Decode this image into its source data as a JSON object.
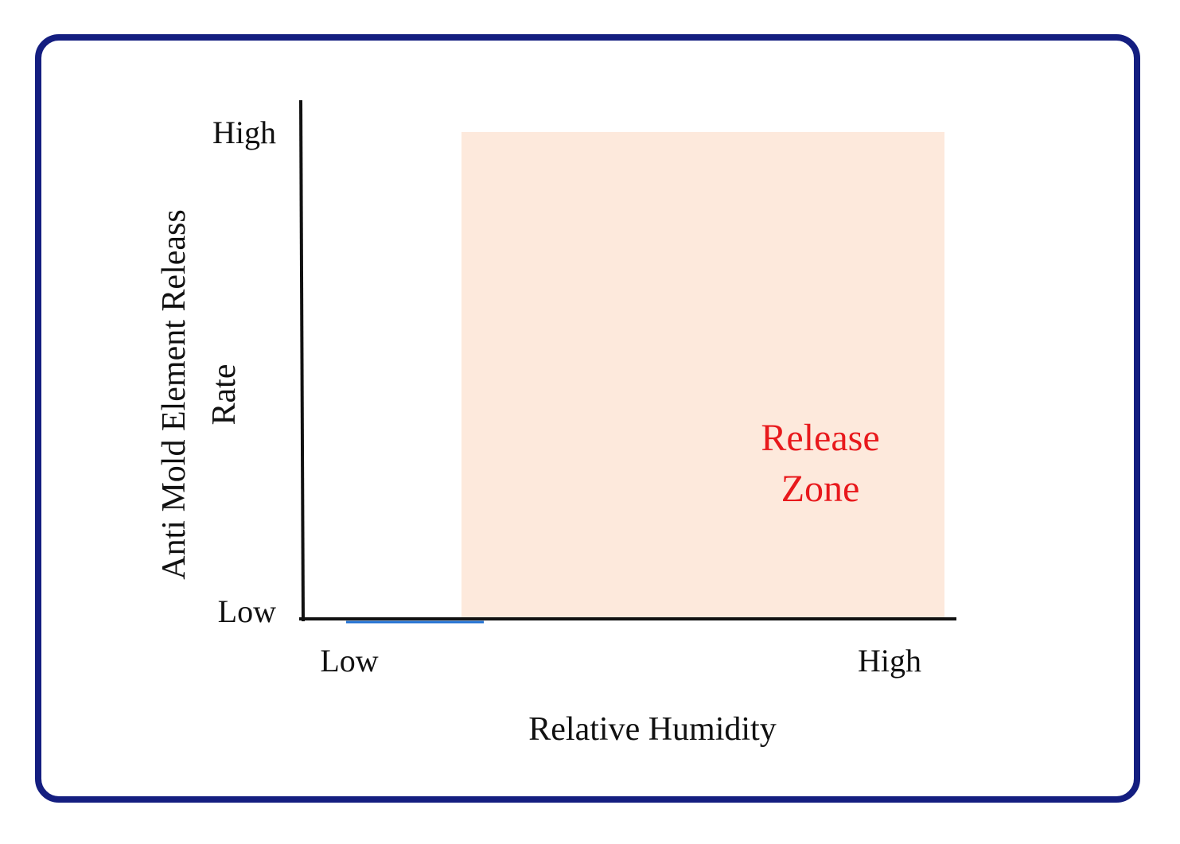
{
  "y_axis": {
    "title_line1": "Anti Mold Element Releass",
    "title_line2": "Rate",
    "high_label": "High",
    "low_label": "Low"
  },
  "x_axis": {
    "title": "Relative Humidity",
    "low_label": "Low",
    "high_label": "High"
  },
  "zone": {
    "label_line1": "Release",
    "label_line2": "Zone",
    "fill_color": "#fde9dc",
    "text_color": "#e8191c"
  },
  "colors": {
    "frame_border": "#141e80",
    "axis": "#111111",
    "baseline_segment": "#1f6fd1"
  }
}
